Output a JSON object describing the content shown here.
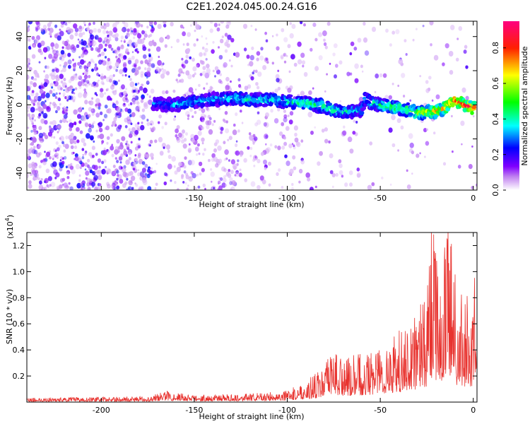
{
  "chart_data": [
    {
      "type": "heatmap",
      "title": "C2E1.2024.045.00.24.G16",
      "xlabel": "Height of straight line (km)",
      "ylabel": "Frequency (Hz)",
      "xlim": [
        -240,
        2
      ],
      "ylim": [
        -50,
        49
      ],
      "x_ticks": [
        -200,
        -150,
        -100,
        -50,
        0
      ],
      "y_ticks": [
        -40,
        -20,
        0,
        20,
        40
      ],
      "colorbar": {
        "label": "Normalized spectral amplitude",
        "range": [
          0,
          0.95
        ],
        "ticks": [
          "0.0",
          "0.2",
          "0.4",
          "0.6",
          "0.8"
        ],
        "tick_values": [
          0.0,
          0.2,
          0.4,
          0.6,
          0.8
        ],
        "colors": [
          "#ffffff",
          "#a020f0",
          "#0000ff",
          "#00ffff",
          "#00ff00",
          "#ffff00",
          "#ff0000",
          "#ff0080"
        ]
      },
      "ridge": {
        "x": [
          -172,
          -165,
          -160,
          -150,
          -140,
          -130,
          -120,
          -110,
          -100,
          -90,
          -85,
          -80,
          -75,
          -70,
          -65,
          -60,
          -58,
          -55,
          -50,
          -45,
          -40,
          -35,
          -30,
          -25,
          -20,
          -15,
          -10,
          -5,
          0
        ],
        "y": [
          1,
          0,
          0,
          2,
          3,
          4,
          3,
          3,
          2,
          1,
          0,
          -1,
          -3,
          -4,
          -4,
          -3,
          4,
          1,
          0,
          -1,
          -2,
          -3,
          -5,
          -4,
          -4,
          -2,
          3,
          0,
          -2
        ],
        "amplitude": [
          0.3,
          0.3,
          0.35,
          0.35,
          0.35,
          0.4,
          0.4,
          0.4,
          0.4,
          0.45,
          0.45,
          0.45,
          0.45,
          0.4,
          0.4,
          0.35,
          0.35,
          0.45,
          0.45,
          0.5,
          0.5,
          0.55,
          0.55,
          0.65,
          0.7,
          0.75,
          0.8,
          0.85,
          0.9
        ]
      }
    },
    {
      "type": "line",
      "xlabel": "Height of straight line (km)",
      "ylabel": "SNR (10 * v/v)",
      "y_scale_note": "(x10",
      "y_scale_exp": "4",
      "xlim": [
        -240,
        2
      ],
      "ylim": [
        0,
        13000
      ],
      "x_ticks": [
        -200,
        -150,
        -100,
        -50,
        0
      ],
      "y_ticks": [
        "0.2",
        "0.4",
        "0.6",
        "0.8",
        "1.0",
        "1.2"
      ],
      "y_tick_values": [
        2000,
        4000,
        6000,
        8000,
        10000,
        12000
      ],
      "color": "#e8332f",
      "envelope": {
        "x": [
          -240,
          -200,
          -175,
          -165,
          -150,
          -120,
          -100,
          -90,
          -80,
          -75,
          -70,
          -60,
          -50,
          -40,
          -30,
          -25,
          -22,
          -18,
          -15,
          -12,
          -8,
          -5,
          -2,
          0,
          2
        ],
        "y": [
          300,
          350,
          400,
          800,
          500,
          600,
          800,
          1500,
          2500,
          4000,
          3000,
          3500,
          4000,
          5000,
          6500,
          8000,
          13000,
          9000,
          12000,
          13000,
          7000,
          8000,
          7500,
          8500,
          9000
        ]
      }
    }
  ]
}
